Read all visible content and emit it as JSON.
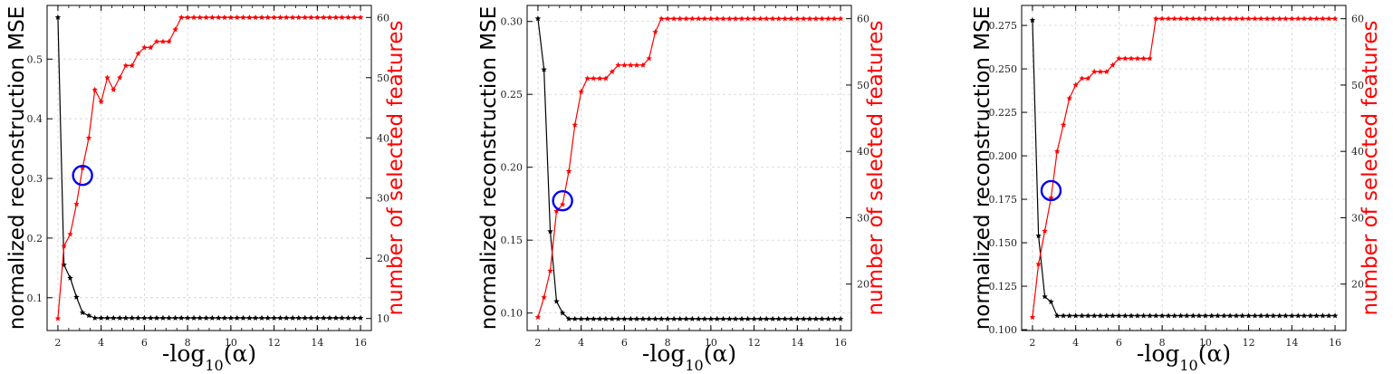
{
  "colors": {
    "mse": "#000000",
    "features": "#ff0000",
    "highlight": "#0000ee",
    "grid": "#cccccc"
  },
  "chart_data": [
    {
      "type": "line",
      "xlabel": "-log10(α)",
      "ylabel_left": "normalized reconstruction MSE",
      "ylabel_right": "number of selected features",
      "xlim": [
        1.5,
        16.5
      ],
      "ylim_left": [
        0.045,
        0.59
      ],
      "ylim_right": [
        8,
        62
      ],
      "xticks": [
        2,
        4,
        6,
        8,
        10,
        12,
        14,
        16
      ],
      "yticks_left": [
        0.1,
        0.2,
        0.3,
        0.4,
        0.5
      ],
      "yticks_right": [
        10,
        20,
        30,
        40,
        50,
        60
      ],
      "grid": true,
      "series": [
        {
          "axis": "left",
          "color": "#000000",
          "x": [
            2.0,
            2.28,
            2.57,
            2.86,
            3.14,
            3.43,
            3.71,
            4.0,
            4.29,
            4.57,
            4.86,
            5.14,
            5.43,
            5.71,
            6.0,
            6.29,
            6.57,
            6.86,
            7.14,
            7.43,
            7.71,
            8.0,
            8.29,
            8.57,
            8.86,
            9.14,
            9.43,
            9.71,
            10.0,
            10.29,
            10.57,
            10.86,
            11.14,
            11.43,
            11.71,
            12.0,
            12.29,
            12.57,
            12.86,
            13.14,
            13.43,
            13.71,
            14.0,
            14.29,
            14.57,
            14.86,
            15.14,
            15.43,
            15.71,
            16.0
          ],
          "y": [
            0.57,
            0.155,
            0.133,
            0.101,
            0.075,
            0.07,
            0.066,
            0.066,
            0.066,
            0.066,
            0.066,
            0.066,
            0.066,
            0.066,
            0.066,
            0.066,
            0.066,
            0.066,
            0.066,
            0.066,
            0.066,
            0.066,
            0.066,
            0.066,
            0.066,
            0.066,
            0.066,
            0.066,
            0.066,
            0.066,
            0.066,
            0.066,
            0.066,
            0.066,
            0.066,
            0.066,
            0.066,
            0.066,
            0.066,
            0.066,
            0.066,
            0.066,
            0.066,
            0.066,
            0.066,
            0.066,
            0.066,
            0.066,
            0.066,
            0.066
          ]
        },
        {
          "axis": "right",
          "color": "#ff0000",
          "x": [
            2.0,
            2.28,
            2.57,
            2.86,
            3.14,
            3.43,
            3.71,
            4.0,
            4.29,
            4.57,
            4.86,
            5.14,
            5.43,
            5.71,
            6.0,
            6.29,
            6.57,
            6.86,
            7.14,
            7.43,
            7.71,
            8.0,
            8.29,
            8.57,
            8.86,
            9.14,
            9.43,
            9.71,
            10.0,
            10.29,
            10.57,
            10.86,
            11.14,
            11.43,
            11.71,
            12.0,
            12.29,
            12.57,
            12.86,
            13.14,
            13.43,
            13.71,
            14.0,
            14.29,
            14.57,
            14.86,
            15.14,
            15.43,
            15.71,
            16.0
          ],
          "y": [
            10,
            22,
            24,
            29,
            35,
            40,
            48,
            46,
            50,
            48,
            50,
            52,
            52,
            54,
            55,
            55,
            56,
            56,
            56,
            58,
            60,
            60,
            60,
            60,
            60,
            60,
            60,
            60,
            60,
            60,
            60,
            60,
            60,
            60,
            60,
            60,
            60,
            60,
            60,
            60,
            60,
            60,
            60,
            60,
            60,
            60,
            60,
            60,
            60,
            60
          ]
        }
      ],
      "highlight": {
        "x": 3.14,
        "y_left": 0.305
      }
    },
    {
      "type": "line",
      "xlabel": "-log10(α)",
      "ylabel_left": "normalized reconstruction MSE",
      "ylabel_right": "number of selected features",
      "xlim": [
        1.5,
        16.5
      ],
      "ylim_left": [
        0.088,
        0.311
      ],
      "ylim_right": [
        13,
        62
      ],
      "xticks": [
        2,
        4,
        6,
        8,
        10,
        12,
        14,
        16
      ],
      "yticks_left": [
        0.1,
        0.15,
        0.2,
        0.25,
        0.3
      ],
      "yticks_right": [
        20,
        30,
        40,
        50,
        60
      ],
      "grid": true,
      "series": [
        {
          "axis": "left",
          "color": "#000000",
          "x": [
            2.0,
            2.28,
            2.57,
            2.86,
            3.14,
            3.43,
            3.71,
            4.0,
            4.29,
            4.57,
            4.86,
            5.14,
            5.43,
            5.71,
            6.0,
            6.29,
            6.57,
            6.86,
            7.14,
            7.43,
            7.71,
            8.0,
            8.29,
            8.57,
            8.86,
            9.14,
            9.43,
            9.71,
            10.0,
            10.29,
            10.57,
            10.86,
            11.14,
            11.43,
            11.71,
            12.0,
            12.29,
            12.57,
            12.86,
            13.14,
            13.43,
            13.71,
            14.0,
            14.29,
            14.57,
            14.86,
            15.14,
            15.43,
            15.71,
            16.0
          ],
          "y": [
            0.302,
            0.267,
            0.156,
            0.108,
            0.1,
            0.096,
            0.096,
            0.096,
            0.096,
            0.096,
            0.096,
            0.096,
            0.096,
            0.096,
            0.096,
            0.096,
            0.096,
            0.096,
            0.096,
            0.096,
            0.096,
            0.096,
            0.096,
            0.096,
            0.096,
            0.096,
            0.096,
            0.096,
            0.096,
            0.096,
            0.096,
            0.096,
            0.096,
            0.096,
            0.096,
            0.096,
            0.096,
            0.096,
            0.096,
            0.096,
            0.096,
            0.096,
            0.096,
            0.096,
            0.096,
            0.096,
            0.096,
            0.096,
            0.096,
            0.096
          ]
        },
        {
          "axis": "right",
          "color": "#ff0000",
          "x": [
            2.0,
            2.28,
            2.57,
            2.86,
            3.14,
            3.43,
            3.71,
            4.0,
            4.29,
            4.57,
            4.86,
            5.14,
            5.43,
            5.71,
            6.0,
            6.29,
            6.57,
            6.86,
            7.14,
            7.43,
            7.71,
            8.0,
            8.29,
            8.57,
            8.86,
            9.14,
            9.43,
            9.71,
            10.0,
            10.29,
            10.57,
            10.86,
            11.14,
            11.43,
            11.71,
            12.0,
            12.29,
            12.57,
            12.86,
            13.14,
            13.43,
            13.71,
            14.0,
            14.29,
            14.57,
            14.86,
            15.14,
            15.43,
            15.71,
            16.0
          ],
          "y": [
            15,
            18,
            22,
            31,
            32,
            37,
            44,
            49,
            51,
            51,
            51,
            51,
            52,
            53,
            53,
            53,
            53,
            53,
            54,
            58,
            60,
            60,
            60,
            60,
            60,
            60,
            60,
            60,
            60,
            60,
            60,
            60,
            60,
            60,
            60,
            60,
            60,
            60,
            60,
            60,
            60,
            60,
            60,
            60,
            60,
            60,
            60,
            60,
            60,
            60
          ]
        }
      ],
      "highlight": {
        "x": 3.14,
        "y_left": 0.177
      }
    },
    {
      "type": "line",
      "xlabel": "-log10(α)",
      "ylabel_left": "normalized reconstruction MSE",
      "ylabel_right": "number of selected features",
      "xlim": [
        1.5,
        16.5
      ],
      "ylim_left": [
        0.0995,
        0.2865
      ],
      "ylim_right": [
        13,
        62
      ],
      "xticks": [
        2,
        4,
        6,
        8,
        10,
        12,
        14,
        16
      ],
      "yticks_left": [
        0.1,
        0.125,
        0.15,
        0.175,
        0.2,
        0.225,
        0.25,
        0.275
      ],
      "yticks_right": [
        20,
        30,
        40,
        50,
        60
      ],
      "grid": true,
      "series": [
        {
          "axis": "left",
          "color": "#000000",
          "x": [
            2.0,
            2.28,
            2.57,
            2.86,
            3.14,
            3.43,
            3.71,
            4.0,
            4.29,
            4.57,
            4.86,
            5.14,
            5.43,
            5.71,
            6.0,
            6.29,
            6.57,
            6.86,
            7.14,
            7.43,
            7.71,
            8.0,
            8.29,
            8.57,
            8.86,
            9.14,
            9.43,
            9.71,
            10.0,
            10.29,
            10.57,
            10.86,
            11.14,
            11.43,
            11.71,
            12.0,
            12.29,
            12.57,
            12.86,
            13.14,
            13.43,
            13.71,
            14.0,
            14.29,
            14.57,
            14.86,
            15.14,
            15.43,
            15.71,
            16.0
          ],
          "y": [
            0.278,
            0.154,
            0.119,
            0.116,
            0.108,
            0.108,
            0.108,
            0.108,
            0.108,
            0.108,
            0.108,
            0.108,
            0.108,
            0.108,
            0.108,
            0.108,
            0.108,
            0.108,
            0.108,
            0.108,
            0.108,
            0.108,
            0.108,
            0.108,
            0.108,
            0.108,
            0.108,
            0.108,
            0.108,
            0.108,
            0.108,
            0.108,
            0.108,
            0.108,
            0.108,
            0.108,
            0.108,
            0.108,
            0.108,
            0.108,
            0.108,
            0.108,
            0.108,
            0.108,
            0.108,
            0.108,
            0.108,
            0.108,
            0.108,
            0.108
          ]
        },
        {
          "axis": "right",
          "color": "#ff0000",
          "x": [
            2.0,
            2.28,
            2.57,
            2.86,
            3.14,
            3.43,
            3.71,
            4.0,
            4.29,
            4.57,
            4.86,
            5.14,
            5.43,
            5.71,
            6.0,
            6.29,
            6.57,
            6.86,
            7.14,
            7.43,
            7.71,
            8.0,
            8.29,
            8.57,
            8.86,
            9.14,
            9.43,
            9.71,
            10.0,
            10.29,
            10.57,
            10.86,
            11.14,
            11.43,
            11.71,
            12.0,
            12.29,
            12.57,
            12.86,
            13.14,
            13.43,
            13.71,
            14.0,
            14.29,
            14.57,
            14.86,
            15.14,
            15.43,
            15.71,
            16.0
          ],
          "y": [
            15,
            23,
            28,
            33,
            40,
            44,
            48,
            50,
            51,
            51,
            52,
            52,
            52,
            53,
            54,
            54,
            54,
            54,
            54,
            54,
            60,
            60,
            60,
            60,
            60,
            60,
            60,
            60,
            60,
            60,
            60,
            60,
            60,
            60,
            60,
            60,
            60,
            60,
            60,
            60,
            60,
            60,
            60,
            60,
            60,
            60,
            60,
            60,
            60,
            60
          ]
        }
      ],
      "highlight": {
        "x": 2.86,
        "y_left": 0.18
      }
    }
  ]
}
